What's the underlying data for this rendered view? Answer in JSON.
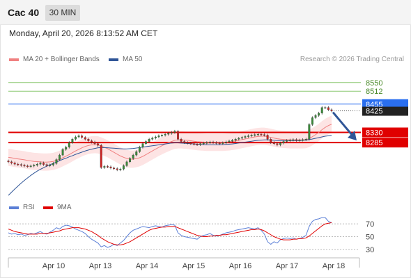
{
  "header": {
    "symbol": "Cac 40",
    "timeframe": "30 MIN"
  },
  "timestamp": "Monday, April 20, 2026 8:13:52 AM CET",
  "legend": [
    {
      "label": "MA 20 + Bollinger Bands",
      "color": "#f08080"
    },
    {
      "label": "MA 50",
      "color": "#2f5597"
    }
  ],
  "credit": "Research © 2026 Trading Central",
  "rsi_legend": [
    {
      "label": "RSI",
      "color": "#5b7fd6"
    },
    {
      "label": "9MA",
      "color": "#e00000"
    }
  ],
  "colors": {
    "candle_up": "#3a8a3a",
    "candle_down": "#cc2222",
    "resistance_green": "#8cc870",
    "support_red": "#e00000",
    "ma50": "#2f5597",
    "band_fill": "#fde4e4",
    "ma20": "#f08080",
    "arrow": "#2f5597",
    "current_price_tag": "#222222",
    "blue_tag": "#2a6ff0"
  },
  "chart_data": [
    {
      "type": "candlestick",
      "title": "",
      "x_tick_labels": [
        "Apr 10",
        "Apr 13",
        "Apr 14",
        "Apr 15",
        "Apr 16",
        "Apr 17",
        "Apr 18"
      ],
      "ylim": [
        8040,
        8620
      ],
      "levels": [
        {
          "value": 8550,
          "label": "8550",
          "kind": "resistance",
          "color": "#8cc870"
        },
        {
          "value": 8512,
          "label": "8512",
          "kind": "resistance",
          "color": "#8cc870"
        },
        {
          "value": 8455,
          "label": "8455",
          "kind": "pivot",
          "color": "#2a6ff0"
        },
        {
          "value": 8330,
          "label": "8330",
          "kind": "support",
          "color": "#e00000"
        },
        {
          "value": 8285,
          "label": "8285",
          "kind": "support",
          "color": "#e00000"
        }
      ],
      "last_price": {
        "value": 8425,
        "label": "8425"
      },
      "forecast_arrow": {
        "from": 8425,
        "to": 8285
      },
      "close_series": [
        8200,
        8195,
        8190,
        8188,
        8185,
        8182,
        8180,
        8182,
        8185,
        8190,
        8195,
        8188,
        8183,
        8186,
        8193,
        8210,
        8230,
        8255,
        8265,
        8285,
        8300,
        8310,
        8315,
        8308,
        8300,
        8293,
        8287,
        8280,
        8273,
        8175,
        8180,
        8178,
        8173,
        8170,
        8165,
        8168,
        8183,
        8200,
        8215,
        8230,
        8245,
        8265,
        8280,
        8290,
        8300,
        8305,
        8310,
        8315,
        8318,
        8322,
        8326,
        8330,
        8335,
        8300,
        8290,
        8285,
        8283,
        8280,
        8278,
        8276,
        8280,
        8283,
        8285,
        8287,
        8285,
        8283,
        8281,
        8284,
        8288,
        8292,
        8295,
        8300,
        8304,
        8308,
        8312,
        8315,
        8318,
        8320,
        8322,
        8320,
        8318,
        8300,
        8285,
        8280,
        8275,
        8283,
        8290,
        8294,
        8296,
        8298,
        8295,
        8296,
        8298,
        8300,
        8365,
        8395,
        8405,
        8415,
        8440,
        8440,
        8430,
        8425
      ],
      "ma20_series": [
        8220,
        8218,
        8215,
        8213,
        8211,
        8209,
        8206,
        8204,
        8202,
        8201,
        8200,
        8199,
        8199,
        8200,
        8202,
        8206,
        8211,
        8218,
        8225,
        8232,
        8240,
        8248,
        8255,
        8262,
        8268,
        8272,
        8275,
        8276,
        8275,
        8270,
        8264,
        8258,
        8250,
        8242,
        8234,
        8226,
        8220,
        8215,
        8212,
        8212,
        8214,
        8218,
        8224,
        8232,
        8240,
        8248,
        8256,
        8264,
        8271,
        8278,
        8284,
        8290,
        8295,
        8297,
        8297,
        8296,
        8295,
        8293,
        8291,
        8289,
        8288,
        8287,
        8286,
        8286,
        8286,
        8286,
        8286,
        8286,
        8287,
        8288,
        8290,
        8292,
        8295,
        8298,
        8301,
        8304,
        8307,
        8310,
        8312,
        8313,
        8313,
        8311,
        8308,
        8305,
        8302,
        8300,
        8299,
        8298,
        8297,
        8297,
        8297,
        8297,
        8297,
        8298,
        8303,
        8311,
        8320,
        8330,
        8342,
        8352,
        8360,
        8366
      ],
      "ma50_series": [
        8052,
        8066,
        8080,
        8093,
        8106,
        8118,
        8129,
        8140,
        8150,
        8159,
        8167,
        8174,
        8181,
        8187,
        8193,
        8199,
        8205,
        8211,
        8216,
        8222,
        8227,
        8233,
        8238,
        8243,
        8248,
        8252,
        8256,
        8259,
        8262,
        8263,
        8263,
        8262,
        8261,
        8260,
        8259,
        8258,
        8257,
        8257,
        8258,
        8259,
        8261,
        8263,
        8265,
        8267,
        8269,
        8271,
        8273,
        8275,
        8277,
        8279,
        8281,
        8283,
        8284,
        8284,
        8283,
        8282,
        8281,
        8280,
        8279,
        8278,
        8277,
        8276,
        8275,
        8275,
        8275,
        8275,
        8275,
        8276,
        8277,
        8278,
        8279,
        8281,
        8283,
        8285,
        8287,
        8289,
        8291,
        8293,
        8295,
        8296,
        8297,
        8297,
        8296,
        8295,
        8294,
        8294,
        8294,
        8294,
        8294,
        8294,
        8294,
        8294,
        8295,
        8296,
        8298,
        8301,
        8304,
        8307,
        8310,
        8313,
        8315,
        8317
      ]
    },
    {
      "type": "line",
      "title": "RSI",
      "y_ticks": [
        70,
        50,
        30
      ],
      "ylim": [
        20,
        80
      ],
      "series": [
        {
          "name": "RSI",
          "color": "#5b7fd6",
          "values": [
            56,
            54,
            55,
            53,
            54,
            52,
            53,
            55,
            54,
            56,
            58,
            55,
            54,
            57,
            60,
            64,
            62,
            66,
            68,
            67,
            65,
            62,
            60,
            58,
            55,
            50,
            46,
            43,
            40,
            34,
            36,
            33,
            35,
            38,
            36,
            40,
            44,
            50,
            56,
            60,
            62,
            64,
            66,
            65,
            64,
            66,
            67,
            66,
            65,
            67,
            68,
            69,
            68,
            56,
            52,
            50,
            49,
            48,
            47,
            46,
            50,
            52,
            53,
            55,
            52,
            51,
            52,
            54,
            56,
            57,
            58,
            60,
            61,
            62,
            63,
            64,
            63,
            62,
            64,
            60,
            54,
            42,
            38,
            42,
            40,
            45,
            47,
            48,
            47,
            48,
            46,
            47,
            49,
            52,
            66,
            74,
            77,
            78,
            80,
            80,
            74,
            72
          ]
        },
        {
          "name": "9MA",
          "color": "#e00000",
          "values": [
            62,
            60,
            58,
            57,
            56,
            55,
            54,
            54,
            54,
            54,
            55,
            55,
            55,
            56,
            57,
            58,
            59,
            61,
            62,
            63,
            64,
            64,
            64,
            63,
            62,
            60,
            58,
            55,
            52,
            48,
            45,
            42,
            40,
            38,
            37,
            37,
            38,
            40,
            42,
            45,
            48,
            51,
            54,
            57,
            60,
            62,
            63,
            64,
            65,
            65,
            66,
            66,
            66,
            64,
            62,
            60,
            58,
            56,
            54,
            52,
            51,
            50,
            50,
            51,
            51,
            52,
            52,
            53,
            53,
            54,
            55,
            56,
            57,
            58,
            59,
            60,
            61,
            61,
            62,
            61,
            59,
            56,
            53,
            50,
            48,
            46,
            45,
            45,
            45,
            46,
            46,
            47,
            47,
            48,
            51,
            55,
            59,
            63,
            67,
            70,
            71,
            72
          ]
        }
      ]
    }
  ]
}
